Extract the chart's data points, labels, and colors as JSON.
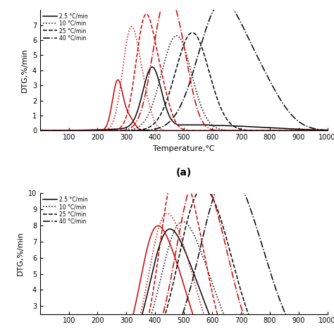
{
  "title_a": "(a)",
  "ylabel_a": "DTG,%/min",
  "ylabel_b": "DTG,%/min",
  "xlabel": "Temperature,°C",
  "xlim": [
    0,
    1000
  ],
  "ylim_a": [
    0,
    8
  ],
  "ylim_b": [
    0,
    10
  ],
  "yticks_a": [
    0,
    1,
    2,
    3,
    4,
    5,
    6,
    7
  ],
  "yticks_b": [
    3,
    4,
    5,
    6,
    7,
    8,
    9,
    10
  ],
  "xticks": [
    100,
    200,
    300,
    400,
    500,
    600,
    700,
    800,
    900,
    1000
  ],
  "legend_labels": [
    "2.5 °C/min",
    "10 °C/min",
    "25 °C/min",
    "40 °C/min"
  ],
  "colors_black": "#000000",
  "colors_red": "#cc0000",
  "bg_color": "#ffffff",
  "a_black_peaks": [
    [
      [
        390,
        32,
        4.0
      ],
      [
        580,
        200,
        0.35
      ]
    ],
    [
      [
        475,
        52,
        6.3
      ]
    ],
    [
      [
        530,
        58,
        6.5
      ]
    ],
    [
      [
        620,
        75,
        7.5
      ],
      [
        750,
        80,
        3.5
      ]
    ]
  ],
  "a_red_peaks": [
    [
      [
        270,
        18,
        3.3
      ],
      [
        310,
        18,
        0.8
      ]
    ],
    [
      [
        315,
        28,
        6.5
      ],
      [
        360,
        25,
        1.8
      ]
    ],
    [
      [
        365,
        32,
        7.2
      ],
      [
        420,
        30,
        2.5
      ]
    ],
    [
      [
        430,
        42,
        7.5
      ],
      [
        490,
        38,
        4.0
      ]
    ]
  ],
  "b_black_peaks": [
    [
      [
        430,
        55,
        5.8
      ],
      [
        520,
        65,
        4.2
      ]
    ],
    [
      [
        470,
        60,
        5.8
      ],
      [
        560,
        70,
        4.5
      ]
    ],
    [
      [
        530,
        65,
        6.2
      ],
      [
        620,
        75,
        6.5
      ]
    ],
    [
      [
        620,
        80,
        7.6
      ],
      [
        730,
        90,
        6.2
      ]
    ]
  ],
  "b_red_peaks": [
    [
      [
        390,
        48,
        6.0
      ],
      [
        470,
        55,
        4.5
      ]
    ],
    [
      [
        420,
        50,
        6.3
      ],
      [
        500,
        58,
        5.0
      ]
    ],
    [
      [
        460,
        50,
        9.0
      ],
      [
        540,
        55,
        6.5
      ]
    ],
    [
      [
        520,
        60,
        7.5
      ],
      [
        610,
        68,
        6.8
      ]
    ]
  ]
}
